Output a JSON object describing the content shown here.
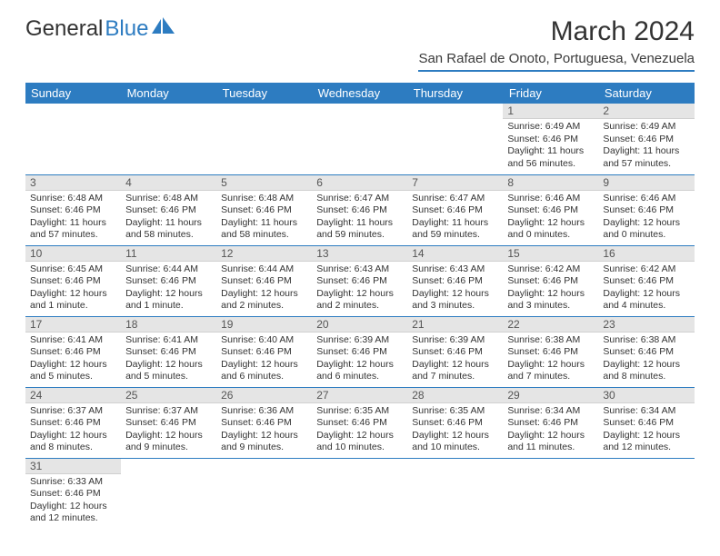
{
  "logo": {
    "word1": "General",
    "word2": "Blue"
  },
  "title": "March 2024",
  "location": "San Rafael de Onoto, Portuguesa, Venezuela",
  "colors": {
    "header_bg": "#2d7cc1",
    "header_text": "#ffffff",
    "daynum_bg": "#e5e5e5",
    "border": "#2d7cc1",
    "body_text": "#333333"
  },
  "day_labels": [
    "Sunday",
    "Monday",
    "Tuesday",
    "Wednesday",
    "Thursday",
    "Friday",
    "Saturday"
  ],
  "weeks": [
    [
      null,
      null,
      null,
      null,
      null,
      {
        "n": "1",
        "sunrise": "Sunrise: 6:49 AM",
        "sunset": "Sunset: 6:46 PM",
        "daylight": "Daylight: 11 hours and 56 minutes."
      },
      {
        "n": "2",
        "sunrise": "Sunrise: 6:49 AM",
        "sunset": "Sunset: 6:46 PM",
        "daylight": "Daylight: 11 hours and 57 minutes."
      }
    ],
    [
      {
        "n": "3",
        "sunrise": "Sunrise: 6:48 AM",
        "sunset": "Sunset: 6:46 PM",
        "daylight": "Daylight: 11 hours and 57 minutes."
      },
      {
        "n": "4",
        "sunrise": "Sunrise: 6:48 AM",
        "sunset": "Sunset: 6:46 PM",
        "daylight": "Daylight: 11 hours and 58 minutes."
      },
      {
        "n": "5",
        "sunrise": "Sunrise: 6:48 AM",
        "sunset": "Sunset: 6:46 PM",
        "daylight": "Daylight: 11 hours and 58 minutes."
      },
      {
        "n": "6",
        "sunrise": "Sunrise: 6:47 AM",
        "sunset": "Sunset: 6:46 PM",
        "daylight": "Daylight: 11 hours and 59 minutes."
      },
      {
        "n": "7",
        "sunrise": "Sunrise: 6:47 AM",
        "sunset": "Sunset: 6:46 PM",
        "daylight": "Daylight: 11 hours and 59 minutes."
      },
      {
        "n": "8",
        "sunrise": "Sunrise: 6:46 AM",
        "sunset": "Sunset: 6:46 PM",
        "daylight": "Daylight: 12 hours and 0 minutes."
      },
      {
        "n": "9",
        "sunrise": "Sunrise: 6:46 AM",
        "sunset": "Sunset: 6:46 PM",
        "daylight": "Daylight: 12 hours and 0 minutes."
      }
    ],
    [
      {
        "n": "10",
        "sunrise": "Sunrise: 6:45 AM",
        "sunset": "Sunset: 6:46 PM",
        "daylight": "Daylight: 12 hours and 1 minute."
      },
      {
        "n": "11",
        "sunrise": "Sunrise: 6:44 AM",
        "sunset": "Sunset: 6:46 PM",
        "daylight": "Daylight: 12 hours and 1 minute."
      },
      {
        "n": "12",
        "sunrise": "Sunrise: 6:44 AM",
        "sunset": "Sunset: 6:46 PM",
        "daylight": "Daylight: 12 hours and 2 minutes."
      },
      {
        "n": "13",
        "sunrise": "Sunrise: 6:43 AM",
        "sunset": "Sunset: 6:46 PM",
        "daylight": "Daylight: 12 hours and 2 minutes."
      },
      {
        "n": "14",
        "sunrise": "Sunrise: 6:43 AM",
        "sunset": "Sunset: 6:46 PM",
        "daylight": "Daylight: 12 hours and 3 minutes."
      },
      {
        "n": "15",
        "sunrise": "Sunrise: 6:42 AM",
        "sunset": "Sunset: 6:46 PM",
        "daylight": "Daylight: 12 hours and 3 minutes."
      },
      {
        "n": "16",
        "sunrise": "Sunrise: 6:42 AM",
        "sunset": "Sunset: 6:46 PM",
        "daylight": "Daylight: 12 hours and 4 minutes."
      }
    ],
    [
      {
        "n": "17",
        "sunrise": "Sunrise: 6:41 AM",
        "sunset": "Sunset: 6:46 PM",
        "daylight": "Daylight: 12 hours and 5 minutes."
      },
      {
        "n": "18",
        "sunrise": "Sunrise: 6:41 AM",
        "sunset": "Sunset: 6:46 PM",
        "daylight": "Daylight: 12 hours and 5 minutes."
      },
      {
        "n": "19",
        "sunrise": "Sunrise: 6:40 AM",
        "sunset": "Sunset: 6:46 PM",
        "daylight": "Daylight: 12 hours and 6 minutes."
      },
      {
        "n": "20",
        "sunrise": "Sunrise: 6:39 AM",
        "sunset": "Sunset: 6:46 PM",
        "daylight": "Daylight: 12 hours and 6 minutes."
      },
      {
        "n": "21",
        "sunrise": "Sunrise: 6:39 AM",
        "sunset": "Sunset: 6:46 PM",
        "daylight": "Daylight: 12 hours and 7 minutes."
      },
      {
        "n": "22",
        "sunrise": "Sunrise: 6:38 AM",
        "sunset": "Sunset: 6:46 PM",
        "daylight": "Daylight: 12 hours and 7 minutes."
      },
      {
        "n": "23",
        "sunrise": "Sunrise: 6:38 AM",
        "sunset": "Sunset: 6:46 PM",
        "daylight": "Daylight: 12 hours and 8 minutes."
      }
    ],
    [
      {
        "n": "24",
        "sunrise": "Sunrise: 6:37 AM",
        "sunset": "Sunset: 6:46 PM",
        "daylight": "Daylight: 12 hours and 8 minutes."
      },
      {
        "n": "25",
        "sunrise": "Sunrise: 6:37 AM",
        "sunset": "Sunset: 6:46 PM",
        "daylight": "Daylight: 12 hours and 9 minutes."
      },
      {
        "n": "26",
        "sunrise": "Sunrise: 6:36 AM",
        "sunset": "Sunset: 6:46 PM",
        "daylight": "Daylight: 12 hours and 9 minutes."
      },
      {
        "n": "27",
        "sunrise": "Sunrise: 6:35 AM",
        "sunset": "Sunset: 6:46 PM",
        "daylight": "Daylight: 12 hours and 10 minutes."
      },
      {
        "n": "28",
        "sunrise": "Sunrise: 6:35 AM",
        "sunset": "Sunset: 6:46 PM",
        "daylight": "Daylight: 12 hours and 10 minutes."
      },
      {
        "n": "29",
        "sunrise": "Sunrise: 6:34 AM",
        "sunset": "Sunset: 6:46 PM",
        "daylight": "Daylight: 12 hours and 11 minutes."
      },
      {
        "n": "30",
        "sunrise": "Sunrise: 6:34 AM",
        "sunset": "Sunset: 6:46 PM",
        "daylight": "Daylight: 12 hours and 12 minutes."
      }
    ],
    [
      {
        "n": "31",
        "sunrise": "Sunrise: 6:33 AM",
        "sunset": "Sunset: 6:46 PM",
        "daylight": "Daylight: 12 hours and 12 minutes."
      },
      null,
      null,
      null,
      null,
      null,
      null
    ]
  ]
}
